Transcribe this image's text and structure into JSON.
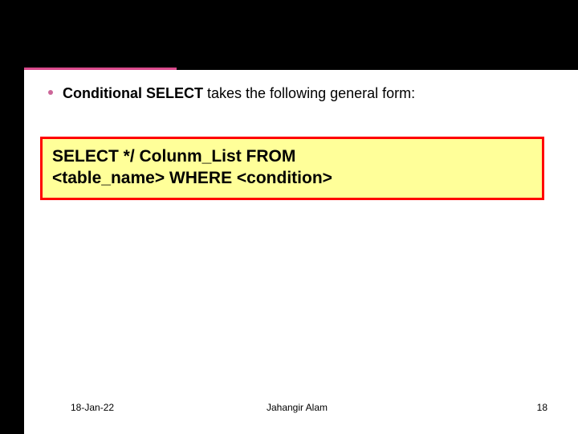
{
  "colors": {
    "header_black": "#000000",
    "rule_pink": "#d94a8c",
    "bullet_pink": "#cc6699",
    "code_box_bg": "#ffff99",
    "code_box_border": "#ff0000",
    "text": "#000000",
    "background": "#ffffff"
  },
  "layout": {
    "rule_pink_width": 190,
    "rule_black_start": 220,
    "rule_black_width": 500
  },
  "bullet": {
    "bold_part": "Conditional SELECT",
    "rest_part": " takes the following general form:"
  },
  "code": {
    "line1": "SELECT */ Colunm_List FROM",
    "line2": "<table_name> WHERE <condition>"
  },
  "footer": {
    "date": "18-Jan-22",
    "author": "Jahangir Alam",
    "page": "18"
  }
}
